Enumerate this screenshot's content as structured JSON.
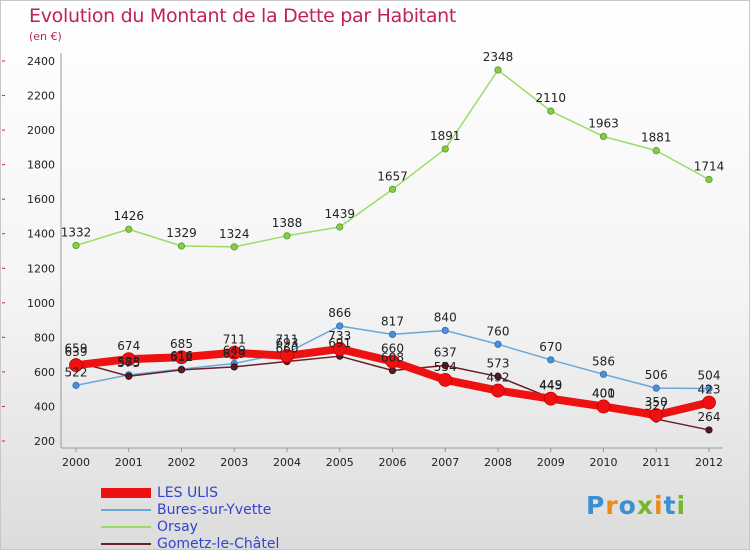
{
  "title": "Evolution du Montant de la Dette par Habitant",
  "unit": "(en €)",
  "logo": {
    "text": "Proxiti",
    "colors": [
      "#3f8fd0",
      "#e98a1c",
      "#3f8fd0",
      "#79b530",
      "#e98a1c",
      "#3f8fd0",
      "#79b530"
    ]
  },
  "chart_data": {
    "type": "line",
    "title": "Evolution du Montant de la Dette par Habitant",
    "ylabel": "(en €)",
    "xlabel": "",
    "ylim": [
      200,
      2400
    ],
    "y_ticks": [
      200,
      400,
      600,
      800,
      1000,
      1200,
      1400,
      1600,
      1800,
      2000,
      2200,
      2400
    ],
    "grid": false,
    "legend_position": "bottom-left",
    "categories": [
      "2000",
      "2001",
      "2002",
      "2003",
      "2004",
      "2005",
      "2006",
      "2007",
      "2008",
      "2009",
      "2010",
      "2011",
      "2012"
    ],
    "series": [
      {
        "name": "Orsay",
        "color": "#99dd66",
        "values": [
          1332,
          1426,
          1329,
          1324,
          1388,
          1439,
          1657,
          1891,
          2348,
          2110,
          1963,
          1881,
          1714
        ]
      },
      {
        "name": "Bures-sur-Yvette",
        "color": "#6aa8d8",
        "values": [
          522,
          583,
          616,
          649,
          711,
          866,
          817,
          840,
          760,
          670,
          586,
          506,
          504
        ]
      },
      {
        "name": "Gometz-le-Châtel",
        "color": "#6a1e28",
        "values": [
          659,
          575,
          612,
          629,
          660,
          691,
          608,
          637,
          573,
          449,
          401,
          327,
          264
        ]
      },
      {
        "name": "LES ULIS",
        "color": "#ee1111",
        "values": [
          639,
          674,
          685,
          711,
          693,
          733,
          660,
          554,
          492,
          445,
          400,
          350,
          423
        ]
      }
    ]
  }
}
